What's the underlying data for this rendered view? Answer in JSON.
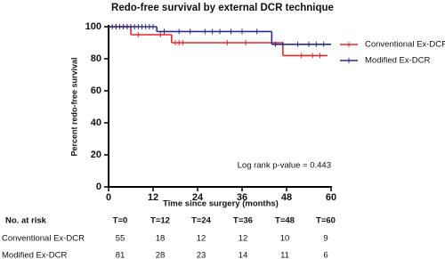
{
  "chart_data": {
    "type": "step",
    "title": "Redo-free survival by external DCR technique",
    "x_label": "Time since surgery (months)",
    "y_label": "Percent redo-free survival",
    "annotation": "Log rank p-value = 0.443",
    "xlim": [
      0,
      60
    ],
    "xticks": [
      0,
      12,
      24,
      36,
      48,
      60
    ],
    "ylim": [
      0,
      100
    ],
    "yticks": [
      0,
      20,
      40,
      60,
      80,
      100
    ],
    "legend": "upper right",
    "series": [
      {
        "name": "Conventional Ex-DCR",
        "color": "#e8262a",
        "x": [
          0,
          6,
          17,
          47,
          59
        ],
        "values": [
          100,
          95,
          90,
          82,
          82
        ],
        "censored": [
          2,
          3,
          4,
          5,
          8,
          14,
          18,
          19,
          20,
          32,
          37,
          52,
          55,
          57
        ]
      },
      {
        "name": "Modified Ex-DCR",
        "color": "#2b2d8c",
        "x": [
          0,
          13,
          44,
          60
        ],
        "values": [
          100,
          97,
          89,
          89
        ],
        "censored": [
          1,
          2,
          3,
          4,
          5,
          6,
          7,
          8,
          9,
          10,
          11,
          12,
          15,
          19,
          22,
          26,
          28,
          30,
          33,
          36,
          40,
          45,
          47,
          51,
          54,
          56,
          58
        ]
      }
    ],
    "risk_table": {
      "title": "No. at risk",
      "headers": [
        "T=0",
        "T=12",
        "T=24",
        "T=36",
        "T=48",
        "T=60"
      ],
      "rows": [
        {
          "label": "Conventional Ex-DCR",
          "values": [
            55,
            18,
            12,
            12,
            10,
            9
          ]
        },
        {
          "label": "Modified Ex-DCR",
          "values": [
            81,
            28,
            23,
            14,
            11,
            6
          ]
        }
      ]
    }
  }
}
